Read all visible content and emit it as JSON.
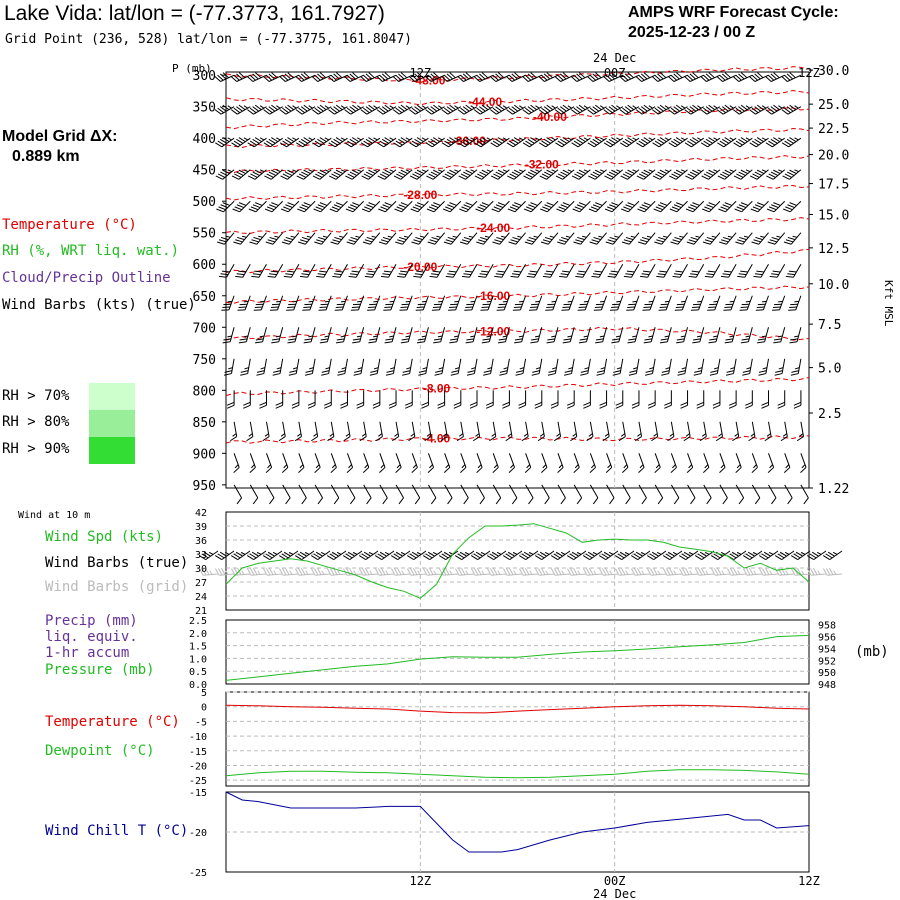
{
  "header": {
    "title": "Lake Vida:  lat/lon = (-77.3773, 161.7927)",
    "gridpoint": "Grid Point (236, 528) lat/lon = (-77.3775, 161.8047)",
    "cycle_label": "AMPS WRF Forecast Cycle:",
    "cycle_value": "2025-12-23 / 00  Z"
  },
  "sidebar": {
    "model_grid_label": "Model Grid ΔX:",
    "model_grid_value": "0.889 km",
    "legend": {
      "temperature": "Temperature (°C)",
      "rh": "RH (%, WRT liq. wat.)",
      "cloud": "Cloud/Precip Outline",
      "wind": "Wind Barbs (kts) (true)"
    },
    "rh_boxes": [
      {
        "label": "RH > 70%",
        "color": "#ccffcc"
      },
      {
        "label": "RH > 80%",
        "color": "#99ee99"
      },
      {
        "label": "RH > 90%",
        "color": "#33dd33"
      }
    ]
  },
  "time_axis": {
    "top_date": "24 Dec",
    "bottom_date": "24 Dec",
    "ticks": [
      "12Z",
      "00Z",
      "12Z"
    ],
    "tick_hours": [
      12,
      24,
      36
    ]
  },
  "colors": {
    "temperature": "#e00000",
    "green": "#22bb22",
    "purple": "#663399",
    "navy": "#000099",
    "grid": "#bbbbbb",
    "barb": "#000000",
    "grid_barb": "#bbbbbb"
  },
  "chart_data": [
    {
      "type": "line",
      "name": "vertical-cross-section",
      "p_label": "P (mb)",
      "right_label": "Kft MSL",
      "pressure_levels": [
        300,
        350,
        400,
        450,
        500,
        550,
        600,
        650,
        700,
        750,
        800,
        850,
        900,
        950
      ],
      "ylim": [
        295,
        955
      ],
      "xlim": [
        0,
        36
      ],
      "right_ticks": [
        {
          "label": "30.0",
          "p": 292
        },
        {
          "label": "25.0",
          "p": 346
        },
        {
          "label": "22.5",
          "p": 384
        },
        {
          "label": "20.0",
          "p": 426
        },
        {
          "label": "17.5",
          "p": 472
        },
        {
          "label": "15.0",
          "p": 521
        },
        {
          "label": "12.5",
          "p": 574
        },
        {
          "label": "10.0",
          "p": 631
        },
        {
          "label": "7.5",
          "p": 695
        },
        {
          "label": "5.0",
          "p": 764
        },
        {
          "label": "2.5",
          "p": 836
        },
        {
          "label": "1.22",
          "p": 955
        }
      ],
      "isotherms": [
        {
          "label": "-48.00",
          "label_x": 12.5,
          "x": [
            0,
            6,
            12,
            18,
            24,
            30,
            36
          ],
          "p": [
            300,
            304,
            309,
            303,
            298,
            292,
            288
          ]
        },
        {
          "label": "-44.00",
          "label_x": 16,
          "x": [
            0,
            6,
            12,
            18,
            24,
            30,
            36
          ],
          "p": [
            338,
            341,
            345,
            341,
            336,
            330,
            326
          ]
        },
        {
          "label": "-40.00",
          "label_x": 20,
          "x": [
            0,
            6,
            12,
            18,
            24,
            30,
            36
          ],
          "p": [
            383,
            376,
            373,
            369,
            362,
            356,
            353
          ]
        },
        {
          "label": "-36.00",
          "label_x": 15,
          "x": [
            0,
            6,
            12,
            18,
            24,
            30,
            36
          ],
          "p": [
            413,
            410,
            407,
            402,
            396,
            390,
            386
          ]
        },
        {
          "label": "-32.00",
          "label_x": 19.5,
          "x": [
            0,
            6,
            12,
            18,
            24,
            30,
            36
          ],
          "p": [
            453,
            450,
            447,
            443,
            439,
            433,
            429
          ]
        },
        {
          "label": "-28.00",
          "label_x": 12,
          "x": [
            0,
            6,
            12,
            18,
            24,
            30,
            36
          ],
          "p": [
            496,
            493,
            490,
            488,
            485,
            480,
            476
          ]
        },
        {
          "label": "-24.00",
          "label_x": 16.5,
          "x": [
            0,
            6,
            12,
            18,
            24,
            30,
            36
          ],
          "p": [
            550,
            547,
            545,
            542,
            537,
            532,
            528
          ]
        },
        {
          "label": "-20.00",
          "label_x": 12,
          "x": [
            0,
            6,
            12,
            18,
            24,
            30,
            36
          ],
          "p": [
            612,
            608,
            604,
            602,
            597,
            590,
            578
          ]
        },
        {
          "label": "-16.00",
          "label_x": 16.5,
          "x": [
            0,
            6,
            12,
            18,
            24,
            30,
            36
          ],
          "p": [
            660,
            656,
            653,
            650,
            645,
            640,
            636
          ]
        },
        {
          "label": "-12.00",
          "label_x": 16.5,
          "x": [
            0,
            6,
            12,
            18,
            24,
            30,
            36
          ],
          "p": [
            718,
            712,
            708,
            706,
            702,
            708,
            720
          ]
        },
        {
          "label": "-8.00",
          "label_x": 13,
          "x": [
            0,
            6,
            12,
            18,
            24,
            30,
            36
          ],
          "p": [
            806,
            802,
            798,
            795,
            790,
            786,
            782
          ]
        },
        {
          "label": "-4.00",
          "label_x": 13,
          "x": [
            0,
            6,
            12,
            18,
            24,
            30,
            36
          ],
          "p": [
            882,
            880,
            877,
            876,
            878,
            876,
            874
          ]
        }
      ],
      "barb_rows": [
        {
          "p": 300,
          "speed": 40,
          "dir": 245
        },
        {
          "p": 350,
          "speed": 45,
          "dir": 240
        },
        {
          "p": 400,
          "speed": 45,
          "dir": 235
        },
        {
          "p": 450,
          "speed": 45,
          "dir": 230
        },
        {
          "p": 500,
          "speed": 40,
          "dir": 225
        },
        {
          "p": 550,
          "speed": 35,
          "dir": 220
        },
        {
          "p": 600,
          "speed": 30,
          "dir": 210
        },
        {
          "p": 650,
          "speed": 35,
          "dir": 200
        },
        {
          "p": 700,
          "speed": 25,
          "dir": 195
        },
        {
          "p": 750,
          "speed": 25,
          "dir": 190
        },
        {
          "p": 800,
          "speed": 20,
          "dir": 180
        },
        {
          "p": 850,
          "speed": 15,
          "dir": 170
        },
        {
          "p": 900,
          "speed": 15,
          "dir": 160
        },
        {
          "p": 950,
          "speed": 10,
          "dir": 150
        }
      ]
    },
    {
      "type": "line",
      "name": "wind-10m",
      "panel_title": "Wind at 10 m",
      "labels": {
        "speed": "Wind Spd (kts)",
        "true_barbs": "Wind Barbs (true)",
        "grid_barbs": "Wind Barbs (grid)"
      },
      "y_ticks": [
        21,
        24,
        27,
        30,
        33,
        36,
        39,
        42
      ],
      "ylim": [
        21,
        42
      ],
      "x": [
        0,
        1,
        2,
        3,
        4,
        5,
        6,
        7,
        8,
        9,
        10,
        11,
        12,
        13,
        14,
        15,
        16,
        17,
        18,
        19,
        20,
        21,
        22,
        23,
        24,
        25,
        26,
        27,
        28,
        29,
        30,
        31,
        32,
        33,
        34,
        35,
        36
      ],
      "speed": [
        26.5,
        30,
        31,
        31.5,
        32,
        31.5,
        30.5,
        29.5,
        28.5,
        27,
        25.8,
        25,
        23.5,
        26.5,
        33,
        36.5,
        39,
        39,
        39.2,
        39.5,
        38.5,
        37.5,
        35.5,
        36,
        36.2,
        36,
        36,
        35.5,
        34.5,
        34,
        33.5,
        32.5,
        30,
        31,
        29.5,
        30,
        27
      ],
      "barb_speed": 35,
      "barb_dir": 235
    },
    {
      "type": "line",
      "name": "precip-pressure",
      "labels": {
        "precip": "Precip (mm)",
        "liq": "liq. equiv.",
        "accum": "1-hr accum",
        "pressure": "Pressure (mb)"
      },
      "right_unit": "(mb)",
      "precip_ticks": [
        "0.0",
        "0.5",
        "1.0",
        "1.5",
        "2.0",
        "2.5"
      ],
      "precip_lim": [
        0,
        2.5
      ],
      "pressure_ticks": [
        "948",
        "950",
        "952",
        "954",
        "956",
        "958"
      ],
      "pressure_lim": [
        948,
        958.8
      ],
      "x": [
        0,
        2,
        4,
        6,
        8,
        10,
        12,
        14,
        16,
        18,
        20,
        22,
        24,
        26,
        28,
        30,
        32,
        34,
        36
      ],
      "pressure": [
        948.6,
        949.2,
        949.8,
        950.4,
        951.0,
        951.4,
        952.2,
        952.6,
        952.5,
        952.5,
        953.0,
        953.4,
        953.6,
        953.9,
        954.3,
        954.6,
        955.0,
        956.0,
        956.2
      ]
    },
    {
      "type": "line",
      "name": "temp-dewpoint",
      "labels": {
        "temperature": "Temperature (°C)",
        "dewpoint": "Dewpoint (°C)"
      },
      "y_ticks": [
        "5",
        "0",
        "-5",
        "-10",
        "-15",
        "-20",
        "-25"
      ],
      "ylim": [
        -27,
        5
      ],
      "x": [
        0,
        2,
        4,
        6,
        8,
        10,
        12,
        14,
        16,
        18,
        20,
        22,
        24,
        26,
        28,
        30,
        32,
        34,
        36
      ],
      "temperature": [
        0.5,
        0.3,
        0.0,
        -0.2,
        -0.5,
        -0.8,
        -1.5,
        -2.0,
        -2.1,
        -1.5,
        -1.0,
        -0.5,
        0.0,
        0.3,
        0.5,
        0.3,
        0.0,
        -0.5,
        -0.8
      ],
      "dewpoint": [
        -23.5,
        -22.5,
        -22.0,
        -22.0,
        -22.3,
        -22.5,
        -23.0,
        -23.5,
        -24.0,
        -24.2,
        -24.0,
        -23.5,
        -23.0,
        -22.0,
        -21.5,
        -21.5,
        -21.7,
        -22.2,
        -23.0
      ]
    },
    {
      "type": "line",
      "name": "wind-chill",
      "labels": {
        "chill": "Wind Chill T (°C)"
      },
      "y_ticks": [
        "-15",
        "-20",
        "-25"
      ],
      "ylim": [
        -25,
        -15
      ],
      "x": [
        0,
        1,
        2,
        4,
        6,
        8,
        10,
        12,
        14,
        15,
        16,
        17,
        18,
        20,
        22,
        24,
        26,
        28,
        30,
        31,
        32,
        33,
        34,
        36
      ],
      "chill": [
        -15.0,
        -16.0,
        -16.2,
        -17.0,
        -17.0,
        -17.0,
        -16.8,
        -16.8,
        -21.0,
        -22.5,
        -22.5,
        -22.5,
        -22.2,
        -21.0,
        -20.0,
        -19.5,
        -18.8,
        -18.4,
        -18.0,
        -17.8,
        -18.5,
        -18.5,
        -19.5,
        -19.2
      ]
    }
  ]
}
